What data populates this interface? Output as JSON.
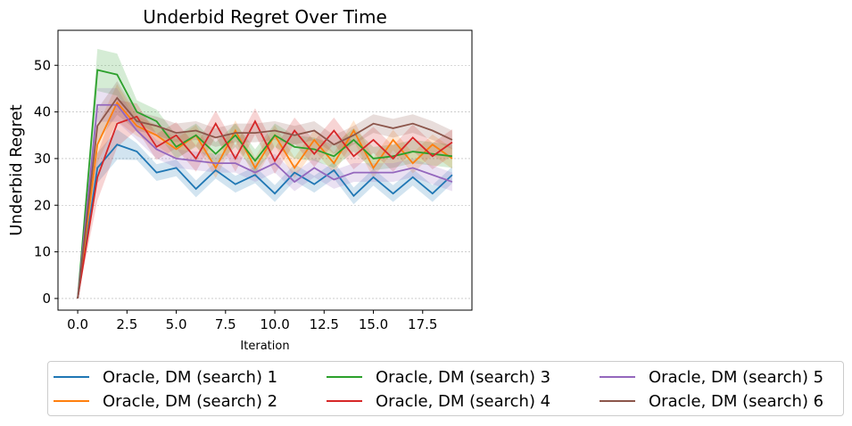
{
  "chart_data": {
    "type": "line",
    "title": "Underbid Regret Over Time",
    "xlabel": "Iteration",
    "ylabel": "Underbid Regret",
    "xlim": [
      -1,
      20
    ],
    "ylim": [
      -2.5,
      57.5
    ],
    "xticks": [
      "0.0",
      "2.5",
      "5.0",
      "7.5",
      "10.0",
      "12.5",
      "15.0",
      "17.5"
    ],
    "yticks": [
      "0",
      "10",
      "20",
      "30",
      "40",
      "50"
    ],
    "grid": "horizontal dashed",
    "legend_position": "bottom",
    "x": [
      0,
      1,
      2,
      3,
      4,
      5,
      6,
      7,
      8,
      9,
      10,
      11,
      12,
      13,
      14,
      15,
      16,
      17,
      18,
      19
    ],
    "series": [
      {
        "name": "Oracle, DM (search) 1",
        "color": "#1f77b4",
        "values": [
          0,
          28,
          33,
          31.5,
          27,
          28,
          23.5,
          27.5,
          24.5,
          26.5,
          22.5,
          27,
          24.5,
          27.5,
          22,
          26,
          22.5,
          26,
          22.5,
          26.5
        ],
        "band": 1.8
      },
      {
        "name": "Oracle, DM (search) 2",
        "color": "#ff7f0e",
        "values": [
          0,
          33,
          42,
          37,
          35,
          32,
          35,
          28,
          36,
          28,
          35,
          28,
          34,
          29,
          36,
          28,
          34,
          29,
          33,
          30
        ],
        "band": 2.2
      },
      {
        "name": "Oracle, DM (search) 3",
        "color": "#2ca02c",
        "values": [
          0,
          49,
          48,
          40,
          38,
          32.5,
          35,
          31,
          35,
          29.5,
          35,
          32.5,
          32,
          30.5,
          34,
          30,
          30.5,
          31.5,
          31,
          30.5
        ],
        "band": 2.5
      },
      {
        "name": "Oracle, DM (search) 4",
        "color": "#d62728",
        "values": [
          0,
          26,
          37.5,
          39,
          32.5,
          35,
          30,
          37.5,
          30,
          38,
          29.5,
          36,
          31,
          36,
          30.5,
          34,
          30,
          34.5,
          30.5,
          33.5
        ],
        "band": 2.8
      },
      {
        "name": "Oracle, DM (search) 5",
        "color": "#9467bd",
        "values": [
          0,
          41.5,
          41.5,
          36,
          32,
          30,
          29.5,
          29,
          29,
          27,
          29,
          25,
          28,
          25.5,
          27,
          27,
          27,
          28,
          26.5,
          25
        ],
        "band": 2.0
      },
      {
        "name": "Oracle, DM (search) 6",
        "color": "#8c564b",
        "values": [
          0,
          37,
          43,
          38,
          37,
          35.5,
          36,
          34.5,
          35.5,
          35.5,
          36,
          35,
          36,
          33,
          35,
          37.5,
          36.5,
          37.5,
          36,
          34
        ],
        "band": 2.0
      }
    ]
  }
}
